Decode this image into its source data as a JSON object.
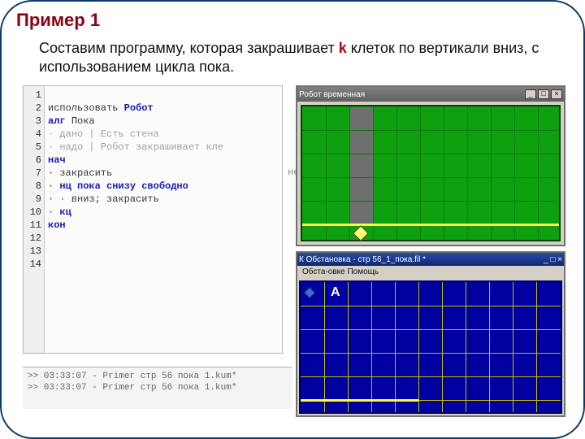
{
  "title": "Пример 1",
  "description_pre": "Составим программу, которая закрашивает ",
  "description_k": "k",
  "description_post": " клеток по вертикали вниз, с использованием цикла пока.",
  "code": {
    "line_numbers": [
      "1",
      "2",
      "3",
      "4",
      "5",
      "6",
      "7",
      "8",
      "9",
      "10",
      "11",
      "12",
      "13",
      "14"
    ],
    "l1a": "использовать ",
    "l1b": "Робот",
    "l2a": "алг ",
    "l2b": "Пока",
    "l3": "· дано | Есть стена",
    "l4": "· надо | Робот закрашивает кле",
    "l5": "нач",
    "l6": "· закрасить",
    "l7a": "· ",
    "l7b": "нц пока снизу свободно",
    "l8": "· · вниз; закрасить",
    "l9a": "· ",
    "l9b": "кц",
    "l10": "кон"
  },
  "side_label": "нет",
  "robot_window": {
    "title": "Робот  временная",
    "buttons": [
      "_",
      "□",
      "×"
    ],
    "grid": {
      "cols": 11,
      "rows": 6,
      "cell": 29,
      "bg": "#0fa00f",
      "line": "#0a7a0a",
      "painted_cells": [
        [
          2,
          0
        ],
        [
          2,
          1
        ],
        [
          2,
          2
        ],
        [
          2,
          3
        ],
        [
          2,
          4
        ]
      ],
      "painted_color": "#6f6f6f",
      "wall_row": 5,
      "wall_color": "#ffff40",
      "robot_cell": [
        2,
        5
      ],
      "robot_color": "#ffff70"
    }
  },
  "obst_window": {
    "title": "К Обстановка - стр 56_1_пока.fil *",
    "buttons": [
      "_",
      "□",
      "×"
    ],
    "menu": "Обста-овке  Помощь",
    "grid": {
      "cols": 11,
      "rows": 6,
      "cell": 29,
      "bg": "#0000a0",
      "line": "#c0c000",
      "letterA": "А",
      "letter_cell": [
        1,
        0
      ],
      "diamond_cell": [
        0,
        0
      ],
      "wall_row_from_bottom": 1,
      "wall_width_cells": 5
    }
  },
  "console": {
    "l1": ">> 03:33:07 - Primer стр 56 пока 1.kum*",
    "l2": ">> 03:33:07 - Primer стр 56 пока 1.kum*"
  },
  "colors": {
    "title": "#8b0015",
    "border": "#0a3a6a"
  }
}
